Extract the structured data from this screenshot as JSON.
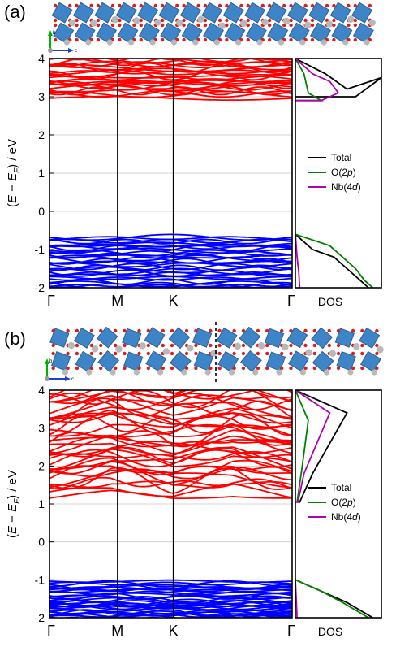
{
  "panels": [
    {
      "label": "(a)",
      "crystal_axes": [
        "b",
        "c"
      ],
      "dos_xlabel": "DOS",
      "legend": [
        "Total",
        "O(2p)",
        "Nb(4d)"
      ],
      "has_dashed_divider": false
    },
    {
      "label": "(b)",
      "crystal_axes": [
        "b",
        "c"
      ],
      "dos_xlabel": "DOS",
      "legend": [
        "Total",
        "O(2p)",
        "Nb(4d)"
      ],
      "has_dashed_divider": true
    }
  ],
  "colors": {
    "conduction": "#ff0000",
    "valence": "#0000ff",
    "total": "#000000",
    "o2p": "#008000",
    "nb4d": "#b000b0",
    "atom_nb": "#3d85c6",
    "atom_o": "#d62020",
    "atom_gray": "#b8b8b8"
  },
  "chart_data": [
    {
      "type": "line",
      "title": "",
      "ylabel": "(E − E_F) / eV",
      "ylim": [
        -2,
        4
      ],
      "yticks": [
        -2,
        -1,
        0,
        1,
        2,
        3,
        4
      ],
      "kpath": [
        "Γ",
        "M",
        "K",
        "Γ"
      ],
      "kpath_positions": [
        0,
        0.28,
        0.51,
        1.0
      ],
      "grid": true,
      "series": [
        {
          "name": "conduction bands",
          "cbm": 2.9,
          "ymax": 4.0
        },
        {
          "name": "valence bands",
          "vbm": -0.6,
          "ymin": -2.0
        },
        {
          "name": "Total",
          "x": [
            0,
            0.35,
            0.6,
            1,
            0.7
          ],
          "y": [
            4,
            3.6,
            3.2,
            3.5,
            3.0
          ],
          "y_lower": [
            -0.6,
            -1.0,
            -1.2,
            -1.5,
            -1.8,
            -2.0
          ],
          "x_lower": [
            0,
            0.2,
            0.45,
            0.6,
            0.75,
            0.85
          ]
        },
        {
          "name": "O(2p)",
          "x": [
            0,
            0.1,
            0.15,
            0.3
          ],
          "y": [
            4,
            3.6,
            3.1,
            2.9
          ],
          "y_lower": [
            -0.6,
            -0.9,
            -1.2,
            -1.5,
            -1.8,
            -2.0
          ],
          "x_lower": [
            0,
            0.4,
            0.55,
            0.7,
            0.8,
            0.9
          ]
        },
        {
          "name": "Nb(4d)",
          "x": [
            0,
            0.2,
            0.4,
            0.5,
            0.3
          ],
          "y": [
            4,
            3.6,
            3.4,
            3.1,
            2.9
          ],
          "y_lower": [
            -0.6,
            -1.2,
            -1.6,
            -2.0
          ],
          "x_lower": [
            0,
            0.02,
            0.04,
            0.05
          ]
        }
      ],
      "legend_position": "right-middle",
      "xlabel_dos": "DOS"
    },
    {
      "type": "line",
      "title": "",
      "ylabel": "(E − E_F) / eV",
      "ylim": [
        -2,
        4
      ],
      "yticks": [
        -2,
        -1,
        0,
        1,
        2,
        3,
        4
      ],
      "kpath": [
        "Γ",
        "M",
        "K",
        "Γ"
      ],
      "kpath_positions": [
        0,
        0.28,
        0.51,
        1.0
      ],
      "grid": true,
      "series": [
        {
          "name": "conduction bands",
          "cbm": 1.05,
          "ymax": 4.0
        },
        {
          "name": "valence bands",
          "vbm": -1.0,
          "ymin": -2.0
        },
        {
          "name": "Total",
          "x": [
            0,
            0.6,
            0.4,
            0.2,
            0.05
          ],
          "y": [
            4,
            3.4,
            2.6,
            1.8,
            1.05
          ],
          "y_lower": [
            -1.0,
            -1.3,
            -1.6,
            -2.0
          ],
          "x_lower": [
            0,
            0.3,
            0.6,
            0.9
          ]
        },
        {
          "name": "O(2p)",
          "x": [
            0,
            0.15,
            0.08,
            0.02
          ],
          "y": [
            4,
            3.2,
            2.0,
            1.05
          ],
          "y_lower": [
            -1.0,
            -1.3,
            -1.6,
            -2.0
          ],
          "x_lower": [
            0,
            0.3,
            0.55,
            0.85
          ]
        },
        {
          "name": "Nb(4d)",
          "x": [
            0,
            0.4,
            0.25,
            0.1,
            0.03
          ],
          "y": [
            4,
            3.4,
            2.6,
            1.8,
            1.05
          ],
          "y_lower": [
            -1.0,
            -2.0
          ],
          "x_lower": [
            0,
            0.02
          ]
        }
      ],
      "legend_position": "right-middle",
      "xlabel_dos": "DOS"
    }
  ]
}
